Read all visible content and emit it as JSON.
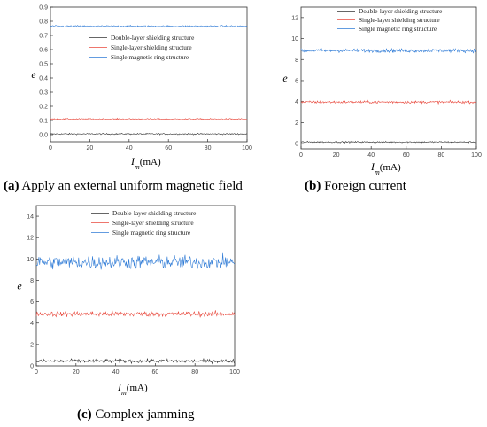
{
  "captions": [
    {
      "letter": "(a)",
      "text": " Apply an external uniform magnetic field"
    },
    {
      "letter": "(b)",
      "text": " Foreign current"
    },
    {
      "letter": "(c)",
      "text": " Complex jamming"
    }
  ],
  "chart_data": [
    {
      "type": "line",
      "xlabel": "Im(mA)",
      "ylabel": "e",
      "xlim": [
        0,
        100
      ],
      "ylim": [
        -0.05,
        0.9
      ],
      "xticks": [
        0,
        20,
        40,
        60,
        80,
        100
      ],
      "yticks": [
        0.0,
        0.1,
        0.2,
        0.3,
        0.4,
        0.5,
        0.6,
        0.7,
        0.8,
        0.9
      ],
      "grid": false,
      "legend_position": "top-right",
      "series": [
        {
          "name": "Double-layer shielding structure",
          "color": "#333333",
          "mean": 0.005,
          "noise": 0.004
        },
        {
          "name": "Single-layer shielding structure",
          "color": "#e8483c",
          "mean": 0.11,
          "noise": 0.004
        },
        {
          "name": "Single magnetic ring structure",
          "color": "#2f7bd6",
          "mean": 0.765,
          "noise": 0.005
        }
      ]
    },
    {
      "type": "line",
      "xlabel": "Im(mA)",
      "ylabel": "e",
      "xlim": [
        0,
        100
      ],
      "ylim": [
        -0.5,
        13
      ],
      "xticks": [
        0,
        20,
        40,
        60,
        80,
        100
      ],
      "yticks": [
        0,
        2,
        4,
        6,
        8,
        10,
        12
      ],
      "grid": false,
      "legend_position": "top-right",
      "series": [
        {
          "name": "Double-layer shielding structure",
          "color": "#333333",
          "mean": 0.15,
          "noise": 0.06
        },
        {
          "name": "Single-layer shielding structure",
          "color": "#e8483c",
          "mean": 3.95,
          "noise": 0.1
        },
        {
          "name": "Single magnetic ring structure",
          "color": "#2f7bd6",
          "mean": 8.85,
          "noise": 0.15
        }
      ]
    },
    {
      "type": "line",
      "xlabel": "Im(mA)",
      "ylabel": "e",
      "xlim": [
        0,
        100
      ],
      "ylim": [
        0,
        15
      ],
      "xticks": [
        0,
        20,
        40,
        60,
        80,
        100
      ],
      "yticks": [
        0,
        2,
        4,
        6,
        8,
        10,
        12,
        14
      ],
      "grid": false,
      "legend_position": "top-right",
      "series": [
        {
          "name": "Double-layer shielding structure",
          "color": "#333333",
          "mean": 0.45,
          "noise": 0.15
        },
        {
          "name": "Single-layer shielding structure",
          "color": "#e8483c",
          "mean": 4.85,
          "noise": 0.22
        },
        {
          "name": "Single magnetic ring structure",
          "color": "#2f7bd6",
          "mean": 9.7,
          "noise": 0.55
        }
      ]
    }
  ]
}
